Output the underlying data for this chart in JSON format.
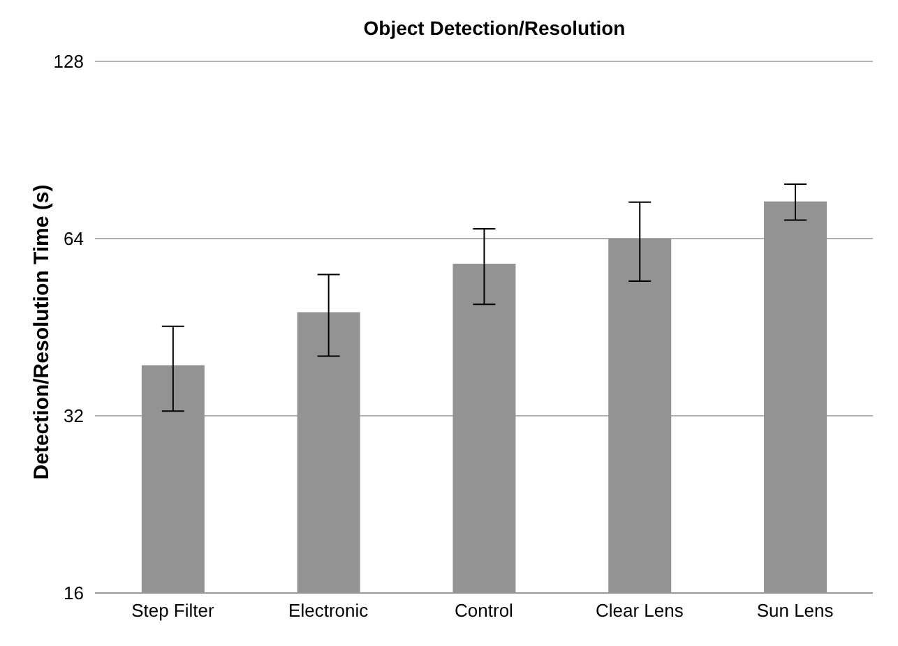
{
  "chart_data": {
    "type": "bar",
    "title": "Object Detection/Resolution",
    "ylabel": "Detection/Resolution Time (s)",
    "categories": [
      "Step Filter",
      "Electronic",
      "Control",
      "Clear Lens",
      "Sun Lens"
    ],
    "values": [
      39,
      48,
      58,
      64,
      74
    ],
    "errors": [
      6.4,
      7.6,
      8.5,
      9.8,
      5.2
    ],
    "color": "#939393",
    "log": "y",
    "ylim": [
      16,
      128
    ],
    "yticks": [
      16,
      32,
      64,
      128
    ],
    "grid": "y"
  }
}
